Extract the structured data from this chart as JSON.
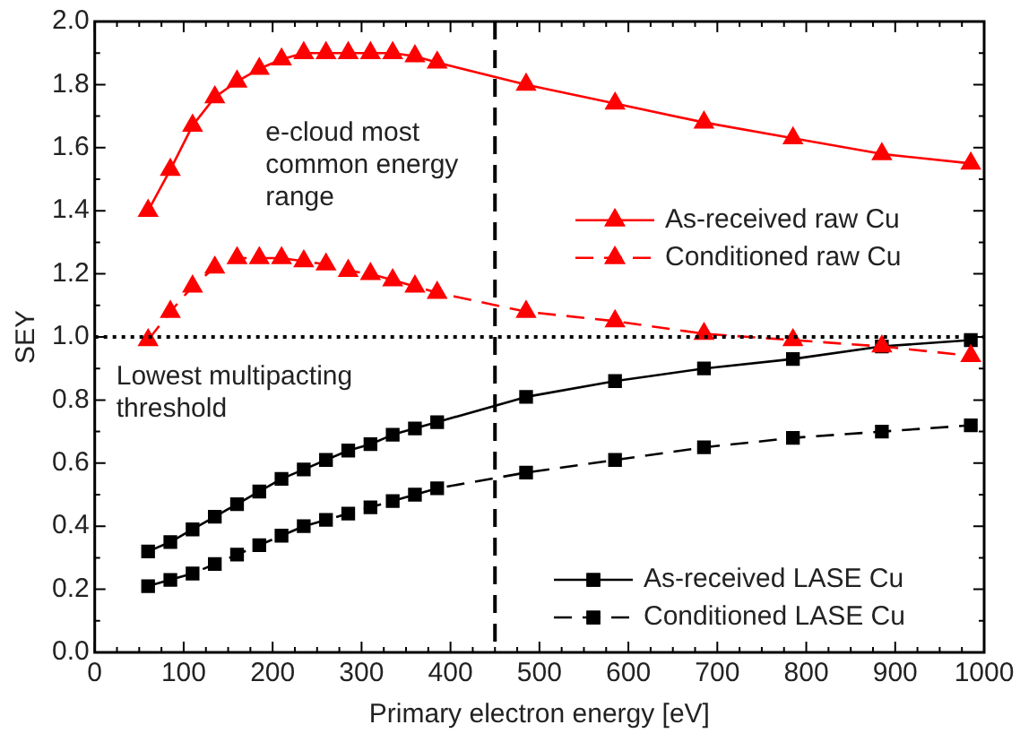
{
  "chart_data": {
    "type": "line",
    "xlabel": "Primary electron energy [eV]",
    "ylabel": "SEY",
    "xlim": [
      0,
      1000
    ],
    "xticks": [
      0,
      100,
      200,
      300,
      400,
      500,
      600,
      700,
      800,
      900,
      1000
    ],
    "ylim": [
      0,
      2
    ],
    "yticks": [
      {
        "value": 0,
        "label": "0.0"
      },
      {
        "value": 0.2,
        "label": "0.2"
      },
      {
        "value": 0.4,
        "label": "0.4"
      },
      {
        "value": 0.6,
        "label": "0.6"
      },
      {
        "value": 0.8,
        "label": "0.8"
      },
      {
        "value": 1,
        "label": "1.0"
      },
      {
        "value": 1.2,
        "label": "1.2"
      },
      {
        "value": 1.4,
        "label": "1.4"
      },
      {
        "value": 1.6,
        "label": "1.6"
      },
      {
        "value": 1.8,
        "label": "1.8"
      },
      {
        "value": 2,
        "label": "2.0"
      }
    ],
    "grid": false,
    "legend": "right",
    "x": [
      60,
      85,
      110,
      135,
      160,
      185,
      210,
      235,
      260,
      285,
      310,
      335,
      360,
      385,
      485,
      585,
      685,
      785,
      885,
      985
    ],
    "series": [
      {
        "name": "As-received raw Cu",
        "color": "#ff0000",
        "marker": "triangle",
        "line_style": "solid",
        "values": [
          1.4,
          1.53,
          1.67,
          1.76,
          1.81,
          1.85,
          1.88,
          1.9,
          1.9,
          1.9,
          1.9,
          1.9,
          1.89,
          1.87,
          1.8,
          1.74,
          1.68,
          1.63,
          1.58,
          1.55
        ]
      },
      {
        "name": "Conditioned raw Cu",
        "color": "#ff0000",
        "marker": "triangle",
        "line_style": "dashed",
        "values": [
          0.99,
          1.08,
          1.16,
          1.22,
          1.25,
          1.25,
          1.25,
          1.24,
          1.23,
          1.21,
          1.2,
          1.18,
          1.16,
          1.14,
          1.08,
          1.05,
          1.01,
          0.99,
          0.97,
          0.94
        ]
      },
      {
        "name": "As-received LASE Cu",
        "color": "#000000",
        "marker": "square",
        "line_style": "solid",
        "values": [
          0.32,
          0.35,
          0.39,
          0.43,
          0.47,
          0.51,
          0.55,
          0.58,
          0.61,
          0.64,
          0.66,
          0.69,
          0.71,
          0.73,
          0.81,
          0.86,
          0.9,
          0.93,
          0.97,
          0.99
        ]
      },
      {
        "name": "Conditioned LASE Cu",
        "color": "#000000",
        "marker": "square",
        "line_style": "dashed",
        "values": [
          0.21,
          0.23,
          0.25,
          0.28,
          0.31,
          0.34,
          0.37,
          0.4,
          0.42,
          0.44,
          0.46,
          0.48,
          0.5,
          0.52,
          0.57,
          0.61,
          0.65,
          0.68,
          0.7,
          0.72
        ]
      }
    ],
    "ref_lines": [
      {
        "axis": "y",
        "value": 1,
        "label": "Lowest multipacting threshold",
        "line_style": "dotted",
        "color": "#000000"
      },
      {
        "axis": "x",
        "value": 450,
        "label": "e-cloud most common energy range",
        "line_style": "dashed",
        "color": "#000000"
      }
    ]
  }
}
